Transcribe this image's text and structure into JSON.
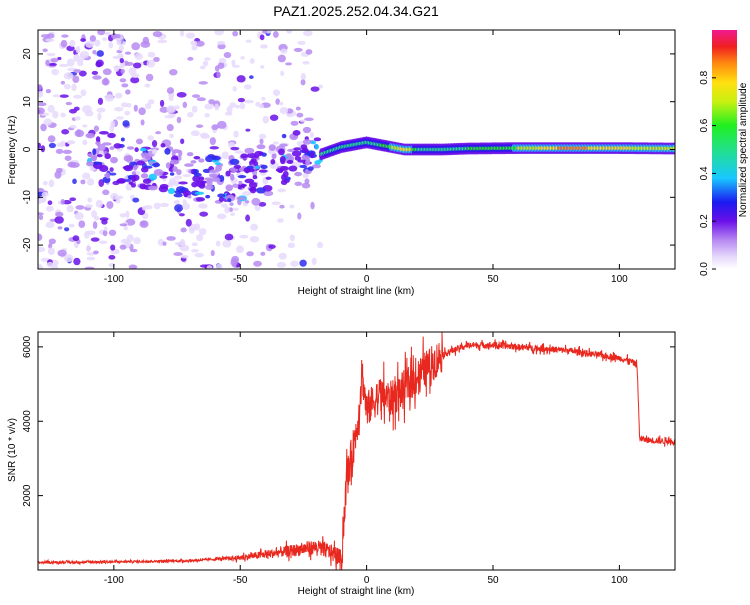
{
  "title": "PAZ1.2025.252.04.34.G21",
  "colors": {
    "snr_line": "#e8281e",
    "axis": "#000000",
    "dot_light": "#e6d9fb",
    "dot_mid": "#b78af2",
    "dot_dark": "#6a10e8",
    "dot_blue": "#2e2bf0"
  },
  "chart_data": [
    {
      "type": "heatmap",
      "name": "spectrogram",
      "xlabel": "Height of straight line (km)",
      "ylabel": "Frequency (Hz)",
      "xlim": [
        -130,
        122
      ],
      "ylim": [
        -25,
        25
      ],
      "xticks": [
        -100,
        -50,
        0,
        50,
        100
      ],
      "xtick_labels": [
        "-100",
        "-50",
        "0",
        "50",
        "100"
      ],
      "yticks": [
        -20,
        -10,
        0,
        10,
        20
      ],
      "ytick_labels": [
        "-20",
        "-10",
        "0",
        "10",
        "20"
      ],
      "colorbar": {
        "label": "Normalized spectral amplitude",
        "range": [
          0,
          1
        ],
        "ticks": [
          0.0,
          0.2,
          0.4,
          0.6,
          0.8
        ],
        "tick_labels": [
          "0.0",
          "0.2",
          "0.4",
          "0.6",
          "0.8"
        ]
      },
      "ridge": {
        "description": "main signal band near 0 Hz",
        "x": [
          -18,
          -10,
          -5,
          0,
          5,
          10,
          15,
          20,
          30,
          40,
          60,
          80,
          100,
          122
        ],
        "freq": [
          -1,
          0.5,
          1,
          1.5,
          1,
          0.5,
          0,
          0,
          0,
          0.2,
          0.3,
          0.3,
          0.3,
          0.2
        ],
        "amplitude": [
          0.5,
          0.55,
          0.6,
          0.55,
          0.6,
          0.7,
          0.85,
          0.6,
          0.55,
          0.6,
          0.7,
          0.9,
          0.8,
          0.7
        ]
      }
    },
    {
      "type": "line",
      "name": "snr",
      "xlabel": "Height of straight line (km)",
      "ylabel": "SNR (10 * v/v)",
      "xlim": [
        -130,
        122
      ],
      "ylim": [
        0,
        6400
      ],
      "xticks": [
        -100,
        -50,
        0,
        50,
        100
      ],
      "xtick_labels": [
        "-100",
        "-50",
        "0",
        "50",
        "100"
      ],
      "yticks": [
        2000,
        4000,
        6000
      ],
      "ytick_labels": [
        "2000",
        "4000",
        "6000"
      ],
      "series": [
        {
          "name": "SNR",
          "x": [
            -130,
            -100,
            -70,
            -50,
            -40,
            -30,
            -20,
            -15,
            -12,
            -10,
            -8,
            -5,
            -3,
            -2,
            0,
            5,
            10,
            20,
            30,
            40,
            50,
            60,
            70,
            80,
            90,
            100,
            105,
            107,
            108,
            110,
            122
          ],
          "y": [
            200,
            220,
            250,
            330,
            420,
            520,
            620,
            500,
            400,
            300,
            2400,
            3400,
            4200,
            5400,
            4300,
            4700,
            4600,
            5200,
            5800,
            6050,
            6050,
            6000,
            5950,
            5900,
            5800,
            5700,
            5600,
            5500,
            3550,
            3500,
            3450
          ]
        }
      ]
    }
  ]
}
